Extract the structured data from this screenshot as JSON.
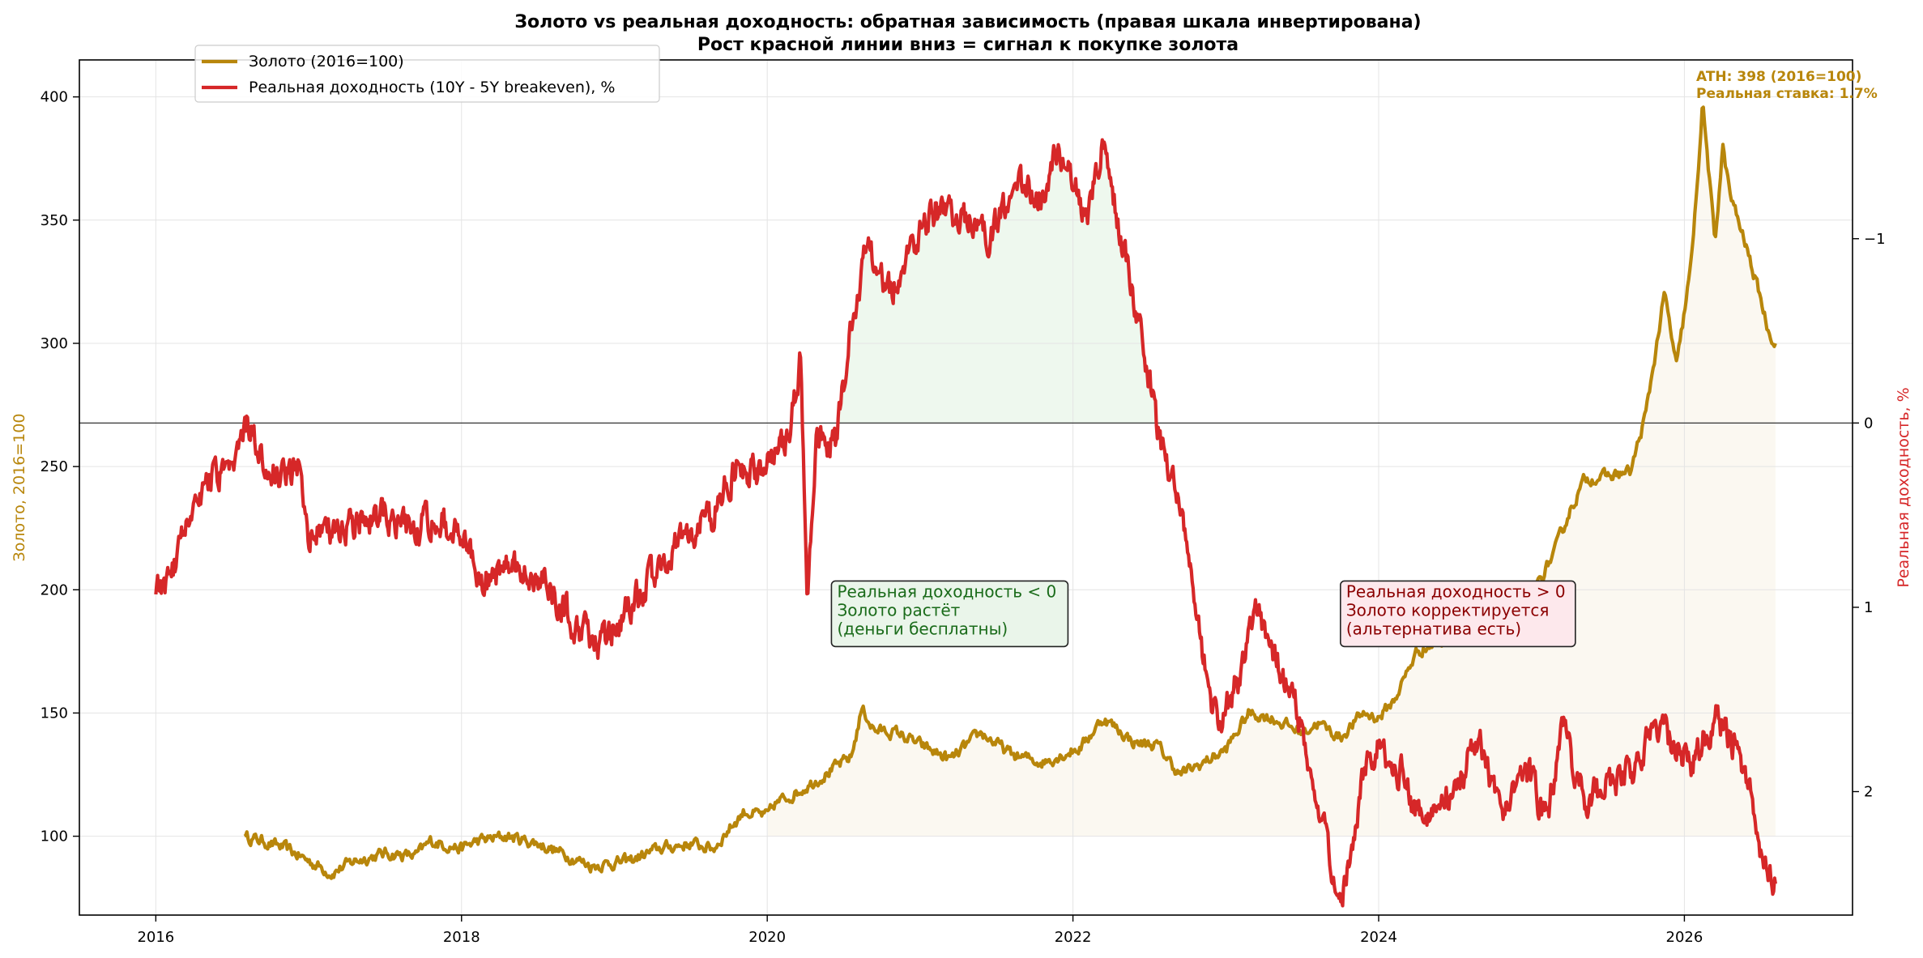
{
  "chart_data": {
    "type": "line",
    "title": "Золото vs реальная доходность: обратная зависимость (правая шкала инвертирована)",
    "subtitle": "Рост красной линии вниз = сигнал к покупке золота",
    "xlabel": "",
    "ylabel_left": "Золото, 2016=100",
    "ylabel_right": "Реальная доходность, %",
    "x_ticks": [
      "2016",
      "2018",
      "2020",
      "2022",
      "2024",
      "2026"
    ],
    "x_range": [
      2015.5,
      2027.1
    ],
    "y_left_ticks": [
      100,
      150,
      200,
      250,
      300,
      350,
      400
    ],
    "y_left_range": [
      68,
      415
    ],
    "y_right_ticks": [
      -1,
      0,
      1,
      2
    ],
    "y_right_tick_labels": [
      "−1",
      "0",
      "1",
      "2"
    ],
    "y_right_range": [
      2.67,
      -1.97
    ],
    "y_right_inverted": true,
    "grid": true,
    "legend_position": "top-left",
    "series": [
      {
        "name": "Золото (2016=100)",
        "axis": "left",
        "color": "#b8860b",
        "points": [
          [
            2016.58,
            100
          ],
          [
            2016.7,
            98
          ],
          [
            2016.85,
            95
          ],
          [
            2017.0,
            90
          ],
          [
            2017.15,
            85
          ],
          [
            2017.3,
            90
          ],
          [
            2017.5,
            93
          ],
          [
            2017.7,
            92
          ],
          [
            2017.8,
            98
          ],
          [
            2018.0,
            95
          ],
          [
            2018.1,
            98
          ],
          [
            2018.3,
            100
          ],
          [
            2018.5,
            97
          ],
          [
            2018.7,
            92
          ],
          [
            2018.85,
            88
          ],
          [
            2019.1,
            90
          ],
          [
            2019.3,
            95
          ],
          [
            2019.5,
            97
          ],
          [
            2019.65,
            95
          ],
          [
            2019.75,
            103
          ],
          [
            2019.85,
            110
          ],
          [
            2020.0,
            108
          ],
          [
            2020.05,
            113
          ],
          [
            2020.2,
            118
          ],
          [
            2020.3,
            122
          ],
          [
            2020.45,
            128
          ],
          [
            2020.55,
            132
          ],
          [
            2020.62,
            152
          ],
          [
            2020.7,
            143
          ],
          [
            2020.85,
            142
          ],
          [
            2021.0,
            137
          ],
          [
            2021.2,
            131
          ],
          [
            2021.4,
            142
          ],
          [
            2021.6,
            133
          ],
          [
            2021.8,
            130
          ],
          [
            2022.05,
            136
          ],
          [
            2022.2,
            148
          ],
          [
            2022.4,
            138
          ],
          [
            2022.55,
            137
          ],
          [
            2022.7,
            125
          ],
          [
            2022.8,
            128
          ],
          [
            2023.0,
            135
          ],
          [
            2023.15,
            150
          ],
          [
            2023.3,
            148
          ],
          [
            2023.5,
            142
          ],
          [
            2023.6,
            146
          ],
          [
            2023.75,
            140
          ],
          [
            2023.9,
            150
          ],
          [
            2024.0,
            148
          ],
          [
            2024.1,
            155
          ],
          [
            2024.25,
            175
          ],
          [
            2024.45,
            180
          ],
          [
            2024.6,
            188
          ],
          [
            2024.75,
            200
          ],
          [
            2024.9,
            196
          ],
          [
            2025.0,
            198
          ],
          [
            2025.15,
            215
          ],
          [
            2025.25,
            232
          ],
          [
            2025.35,
            245
          ],
          [
            2025.5,
            246
          ],
          [
            2025.65,
            248
          ],
          [
            2025.75,
            272
          ],
          [
            2025.87,
            320
          ],
          [
            2025.95,
            290
          ],
          [
            2026.05,
            335
          ],
          [
            2026.12,
            398
          ],
          [
            2026.2,
            340
          ],
          [
            2026.25,
            380
          ],
          [
            2026.3,
            360
          ],
          [
            2026.4,
            340
          ],
          [
            2026.5,
            318
          ],
          [
            2026.55,
            305
          ],
          [
            2026.6,
            300
          ]
        ]
      },
      {
        "name": "Реальная доходность (10Y - 5Y breakeven), %",
        "axis": "right",
        "color": "#d62728",
        "points": [
          [
            2016.0,
            0.93
          ],
          [
            2016.1,
            0.85
          ],
          [
            2016.2,
            0.5
          ],
          [
            2016.35,
            0.3
          ],
          [
            2016.5,
            0.3
          ],
          [
            2016.6,
            -0.02
          ],
          [
            2016.7,
            0.25
          ],
          [
            2016.85,
            0.3
          ],
          [
            2016.95,
            0.22
          ],
          [
            2017.0,
            0.6
          ],
          [
            2017.2,
            0.57
          ],
          [
            2017.5,
            0.5
          ],
          [
            2017.7,
            0.57
          ],
          [
            2017.85,
            0.5
          ],
          [
            2017.95,
            0.6
          ],
          [
            2018.0,
            0.57
          ],
          [
            2018.15,
            0.87
          ],
          [
            2018.3,
            0.78
          ],
          [
            2018.5,
            0.82
          ],
          [
            2018.75,
            1.1
          ],
          [
            2018.9,
            1.22
          ],
          [
            2019.0,
            1.1
          ],
          [
            2019.15,
            0.95
          ],
          [
            2019.35,
            0.7
          ],
          [
            2019.5,
            0.6
          ],
          [
            2019.65,
            0.5
          ],
          [
            2019.8,
            0.22
          ],
          [
            2019.95,
            0.28
          ],
          [
            2020.0,
            0.18
          ],
          [
            2020.15,
            0.05
          ],
          [
            2020.22,
            -0.37
          ],
          [
            2020.26,
            1.0
          ],
          [
            2020.32,
            0.1
          ],
          [
            2020.45,
            0.1
          ],
          [
            2020.55,
            -0.5
          ],
          [
            2020.65,
            -0.95
          ],
          [
            2020.8,
            -0.7
          ],
          [
            2020.95,
            -0.95
          ],
          [
            2021.1,
            -1.15
          ],
          [
            2021.3,
            -1.1
          ],
          [
            2021.45,
            -1.0
          ],
          [
            2021.65,
            -1.3
          ],
          [
            2021.8,
            -1.2
          ],
          [
            2021.9,
            -1.5
          ],
          [
            2022.0,
            -1.3
          ],
          [
            2022.1,
            -1.1
          ],
          [
            2022.2,
            -1.55
          ],
          [
            2022.32,
            -1.0
          ],
          [
            2022.45,
            -0.5
          ],
          [
            2022.55,
            0.05
          ],
          [
            2022.65,
            0.3
          ],
          [
            2022.75,
            0.65
          ],
          [
            2022.85,
            1.3
          ],
          [
            2022.95,
            1.65
          ],
          [
            2023.1,
            1.35
          ],
          [
            2023.2,
            1.0
          ],
          [
            2023.35,
            1.3
          ],
          [
            2023.5,
            1.65
          ],
          [
            2023.65,
            2.2
          ],
          [
            2023.75,
            2.6
          ],
          [
            2023.9,
            1.9
          ],
          [
            2024.0,
            1.75
          ],
          [
            2024.15,
            1.9
          ],
          [
            2024.3,
            2.22
          ],
          [
            2024.5,
            2.0
          ],
          [
            2024.65,
            1.7
          ],
          [
            2024.8,
            2.15
          ],
          [
            2024.95,
            1.85
          ],
          [
            2025.1,
            2.15
          ],
          [
            2025.2,
            1.65
          ],
          [
            2025.35,
            2.05
          ],
          [
            2025.5,
            1.95
          ],
          [
            2025.65,
            1.9
          ],
          [
            2025.8,
            1.65
          ],
          [
            2025.95,
            1.75
          ],
          [
            2026.05,
            1.85
          ],
          [
            2026.2,
            1.6
          ],
          [
            2026.3,
            1.7
          ],
          [
            2026.4,
            1.9
          ],
          [
            2026.5,
            2.3
          ],
          [
            2026.6,
            2.5
          ]
        ]
      }
    ],
    "annotations": [
      {
        "text_lines": [
          "Реальная доходность < 0",
          "Золото растёт",
          "(деньги бесплатны)"
        ],
        "x": 2020.42,
        "y_left": 197,
        "text_color": "#1a6b1a",
        "bg_color": "#eaf5ea"
      },
      {
        "text_lines": [
          "Реальная доходность > 0",
          "Золото корректируется",
          "(альтернатива есть)"
        ],
        "x": 2023.75,
        "y_left": 197,
        "text_color": "#8b0000",
        "bg_color": "#fde8ec"
      },
      {
        "text_lines": [
          "ATH: 398 (2016=100)",
          "Реальная ставка: 1.7%"
        ],
        "x": 2026.1,
        "y_left": 407,
        "text_color": "#b8860b"
      }
    ]
  }
}
